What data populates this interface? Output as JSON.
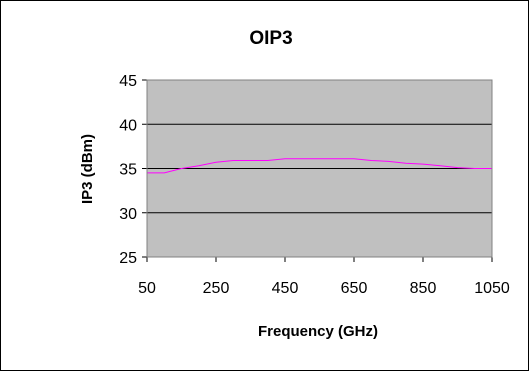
{
  "chart_data": {
    "type": "line",
    "title": "OIP3",
    "xlabel": "Frequency (GHz)",
    "ylabel": "IP3 (dBm)",
    "xlim": [
      50,
      1050
    ],
    "ylim": [
      25,
      45
    ],
    "x_ticks": [
      "50",
      "250",
      "450",
      "650",
      "850",
      "1050"
    ],
    "y_ticks": [
      "45",
      "40",
      "35",
      "30",
      "25"
    ],
    "grid": "horizontal",
    "legend": "none",
    "series": [
      {
        "color": "#FF00FF",
        "x": [
          50,
          100,
          150,
          200,
          250,
          300,
          350,
          400,
          450,
          500,
          550,
          600,
          650,
          700,
          750,
          800,
          850,
          900,
          950,
          1000,
          1050
        ],
        "y": [
          34.5,
          34.5,
          35.0,
          35.3,
          35.7,
          35.9,
          35.9,
          35.9,
          36.1,
          36.1,
          36.1,
          36.1,
          36.1,
          35.9,
          35.8,
          35.6,
          35.5,
          35.3,
          35.1,
          35.0,
          35.0
        ]
      }
    ]
  },
  "colors": {
    "plot_background": "#C0C0C0",
    "gridline": "#000000",
    "series": "#FF00FF"
  }
}
